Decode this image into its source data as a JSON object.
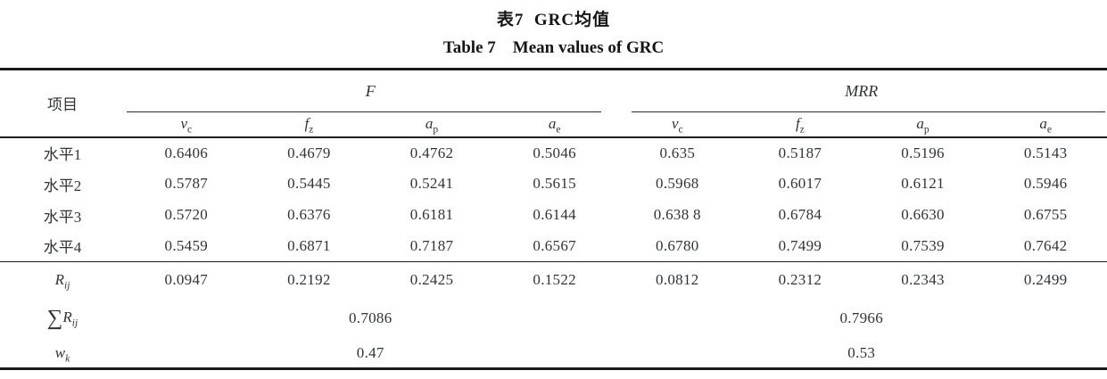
{
  "title": {
    "zh": "表7  GRC均值",
    "en": "Table 7    Mean values of GRC"
  },
  "table": {
    "item_header": "项目",
    "groups": [
      {
        "label": "F"
      },
      {
        "label": "MRR"
      }
    ],
    "subcolumns": [
      {
        "base": "v",
        "sub": "c"
      },
      {
        "base": "f",
        "sub": "z"
      },
      {
        "base": "a",
        "sub": "p"
      },
      {
        "base": "a",
        "sub": "e"
      },
      {
        "base": "v",
        "sub": "c"
      },
      {
        "base": "f",
        "sub": "z"
      },
      {
        "base": "a",
        "sub": "p"
      },
      {
        "base": "a",
        "sub": "e"
      }
    ],
    "rows": [
      {
        "label": "水平1",
        "values": [
          "0.6406",
          "0.4679",
          "0.4762",
          "0.5046",
          "0.635",
          "0.5187",
          "0.5196",
          "0.5143"
        ]
      },
      {
        "label": "水平2",
        "values": [
          "0.5787",
          "0.5445",
          "0.5241",
          "0.5615",
          "0.5968",
          "0.6017",
          "0.6121",
          "0.5946"
        ]
      },
      {
        "label": "水平3",
        "values": [
          "0.5720",
          "0.6376",
          "0.6181",
          "0.6144",
          "0.638 8",
          "0.6784",
          "0.6630",
          "0.6755"
        ]
      },
      {
        "label": "水平4",
        "values": [
          "0.5459",
          "0.6871",
          "0.7187",
          "0.6567",
          "0.6780",
          "0.7499",
          "0.7539",
          "0.7642"
        ]
      }
    ],
    "range_row": {
      "label_base": "R",
      "label_sub": "ij",
      "values": [
        "0.0947",
        "0.2192",
        "0.2425",
        "0.1522",
        "0.0812",
        "0.2312",
        "0.2343",
        "0.2499"
      ]
    },
    "sum_row": {
      "sigma": "∑",
      "label_base": "R",
      "label_sub": "ij",
      "f_value": "0.7086",
      "mrr_value": "0.7966"
    },
    "weight_row": {
      "label_base": "w",
      "label_sub": "k",
      "f_value": "0.47",
      "mrr_value": "0.53"
    },
    "colors": {
      "rule": "#1a1a1a",
      "text": "#30343a",
      "title_text": "#151515",
      "background": "#ffffff"
    }
  }
}
